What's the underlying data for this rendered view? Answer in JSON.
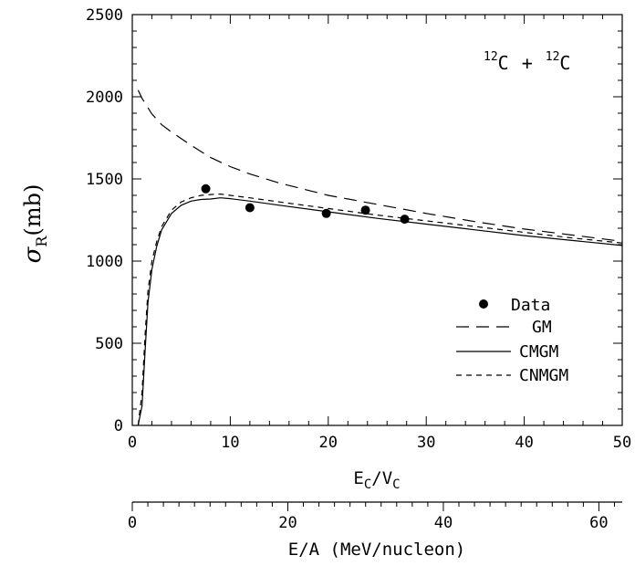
{
  "chart_data": {
    "type": "line",
    "annotation": {
      "mass1": "12",
      "elem1": "C",
      "plus": "+",
      "mass2": "12",
      "elem2": "C"
    },
    "ylabel": {
      "symbol": "σ",
      "subscript": "R",
      "unit": "(mb)"
    },
    "xlabel": {
      "base1": "E",
      "sub1": "C",
      "slash": "/",
      "base2": "V",
      "sub2": "C"
    },
    "xlabel2": "E/A (MeV/nucleon)",
    "xlim": [
      0,
      50
    ],
    "ylim": [
      0,
      2500
    ],
    "x2lim": [
      0,
      63
    ],
    "xticks": [
      0,
      10,
      20,
      30,
      40,
      50
    ],
    "yticks": [
      0,
      500,
      1000,
      1500,
      2000,
      2500
    ],
    "x2ticks": [
      0,
      20,
      40,
      60
    ],
    "legend_position": "right",
    "legend": [
      {
        "label": "Data",
        "style": "dot"
      },
      {
        "label": "GM",
        "style": "long-dash"
      },
      {
        "label": "CMGM",
        "style": "solid"
      },
      {
        "label": "CNMGM",
        "style": "short-dash"
      }
    ],
    "series": [
      {
        "name": "GM",
        "dash": "14,8",
        "points": [
          [
            0.6,
            2040
          ],
          [
            1,
            1990
          ],
          [
            2,
            1895
          ],
          [
            3,
            1830
          ],
          [
            4,
            1785
          ],
          [
            5,
            1745
          ],
          [
            6,
            1705
          ],
          [
            8,
            1630
          ],
          [
            10,
            1575
          ],
          [
            12,
            1530
          ],
          [
            15,
            1475
          ],
          [
            20,
            1400
          ],
          [
            25,
            1345
          ],
          [
            30,
            1290
          ],
          [
            35,
            1240
          ],
          [
            40,
            1195
          ],
          [
            45,
            1158
          ],
          [
            50,
            1120
          ]
        ]
      },
      {
        "name": "CMGM",
        "dash": "",
        "points": [
          [
            0.6,
            0
          ],
          [
            1,
            120
          ],
          [
            1.3,
            450
          ],
          [
            1.6,
            750
          ],
          [
            2,
            950
          ],
          [
            2.5,
            1090
          ],
          [
            3,
            1190
          ],
          [
            4,
            1290
          ],
          [
            5,
            1340
          ],
          [
            6,
            1365
          ],
          [
            7,
            1375
          ],
          [
            8,
            1378
          ],
          [
            9,
            1385
          ],
          [
            10,
            1380
          ],
          [
            12,
            1365
          ],
          [
            15,
            1340
          ],
          [
            20,
            1300
          ],
          [
            25,
            1260
          ],
          [
            30,
            1225
          ],
          [
            35,
            1190
          ],
          [
            40,
            1155
          ],
          [
            45,
            1125
          ],
          [
            50,
            1095
          ]
        ]
      },
      {
        "name": "CNMGM",
        "dash": "6,5",
        "points": [
          [
            0.6,
            0
          ],
          [
            1,
            200
          ],
          [
            1.3,
            550
          ],
          [
            1.6,
            820
          ],
          [
            2,
            1000
          ],
          [
            2.5,
            1120
          ],
          [
            3,
            1210
          ],
          [
            4,
            1310
          ],
          [
            5,
            1360
          ],
          [
            6,
            1385
          ],
          [
            7,
            1400
          ],
          [
            8,
            1405
          ],
          [
            9,
            1408
          ],
          [
            10,
            1400
          ],
          [
            12,
            1385
          ],
          [
            15,
            1360
          ],
          [
            20,
            1320
          ],
          [
            25,
            1280
          ],
          [
            30,
            1245
          ],
          [
            35,
            1210
          ],
          [
            40,
            1175
          ],
          [
            45,
            1140
          ],
          [
            50,
            1110
          ]
        ]
      }
    ],
    "data_points": [
      [
        7.5,
        1440
      ],
      [
        12,
        1325
      ],
      [
        19.8,
        1290
      ],
      [
        23.8,
        1310
      ],
      [
        27.8,
        1255
      ]
    ]
  }
}
